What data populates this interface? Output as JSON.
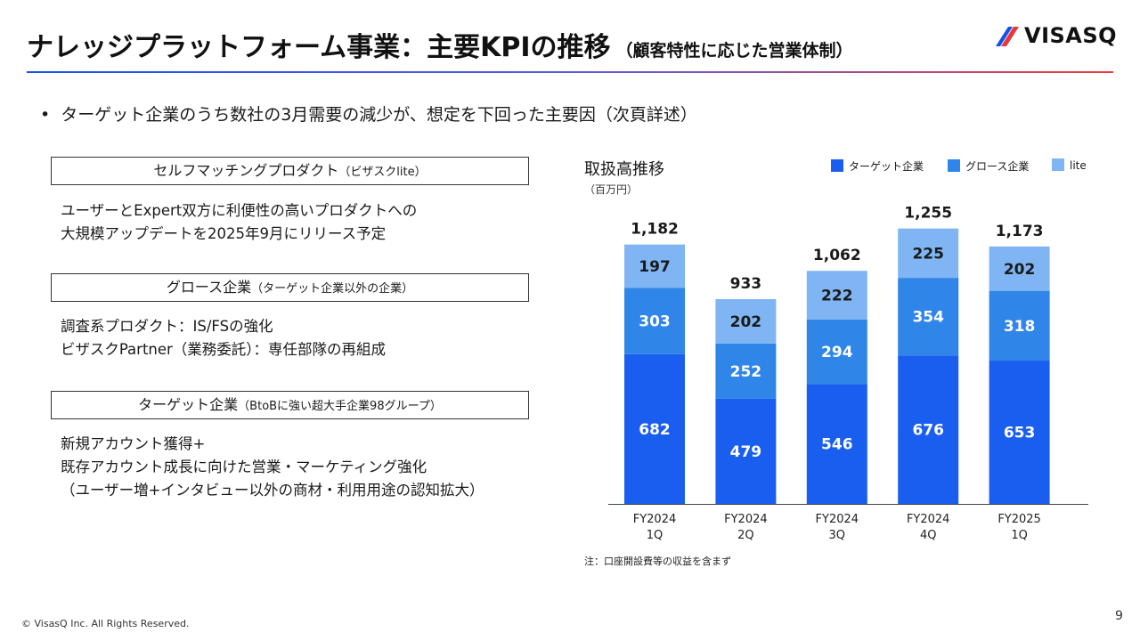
{
  "header": {
    "title": "ナレッジプラットフォーム事業：主要KPIの推移",
    "subtitle": "（顧客特性に応じた営業体制）",
    "logo_text": "VISASQ"
  },
  "bullet": "ターゲット企業のうち数社の3月需要の減少が、想定を下回った主要因（次頁詳述）",
  "segments": [
    {
      "box_main": "セルフマッチングプロダクト",
      "box_sub": "（ビザスクlite）",
      "lines": [
        "ユーザーとExpert双方に利便性の高いプロダクトへの",
        "大規模アップデートを2025年9月にリリース予定"
      ]
    },
    {
      "box_main": "グロース企業",
      "box_sub": "（ターゲット企業以外の企業）",
      "lines": [
        "調査系プロダクト：IS/FSの強化",
        "ビザスクPartner（業務委託）：専任部隊の再組成"
      ]
    },
    {
      "box_main": "ターゲット企業",
      "box_sub": "（BtoBに強い超大手企業98グループ）",
      "lines": [
        "新規アカウント獲得+",
        "既存アカウント成長に向けた営業・マーケティング強化",
        "（ユーザー増+インタビュー以外の商材・利用用途の認知拡大）"
      ]
    }
  ],
  "chart_data": {
    "type": "bar",
    "stacked": true,
    "title": "取扱高推移",
    "unit": "（百万円）",
    "categories": [
      [
        "FY2024",
        "1Q"
      ],
      [
        "FY2024",
        "2Q"
      ],
      [
        "FY2024",
        "3Q"
      ],
      [
        "FY2024",
        "4Q"
      ],
      [
        "FY2025",
        "1Q"
      ]
    ],
    "series": [
      {
        "name": "ターゲット企業",
        "values": [
          682,
          479,
          546,
          676,
          653
        ],
        "color": "#1a5ef0"
      },
      {
        "name": "グロース企業",
        "values": [
          303,
          252,
          294,
          354,
          318
        ],
        "color": "#2f86e8"
      },
      {
        "name": "lite",
        "values": [
          197,
          202,
          222,
          225,
          202
        ],
        "color": "#7fb5f2"
      }
    ],
    "totals": [
      "1,182",
      "933",
      "1,062",
      "1,255",
      "1,173"
    ],
    "ylim": [
      0,
      1300
    ],
    "legend_position": "top-right",
    "grid": false,
    "note": "注：口座開設費等の収益を含まず"
  },
  "footer": {
    "copyright": "© VisasQ Inc. All Rights Reserved.",
    "page_number": "9"
  }
}
